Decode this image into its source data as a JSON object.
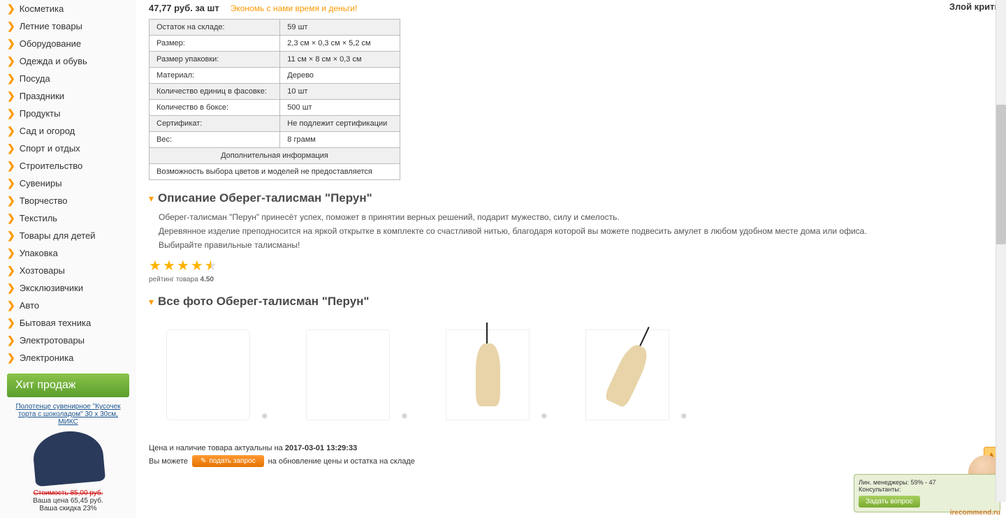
{
  "top_right": "Злой критик",
  "sidebar": {
    "items": [
      {
        "label": "Косметика"
      },
      {
        "label": "Летние товары"
      },
      {
        "label": "Оборудование"
      },
      {
        "label": "Одежда и обувь"
      },
      {
        "label": "Посуда"
      },
      {
        "label": "Праздники"
      },
      {
        "label": "Продукты"
      },
      {
        "label": "Сад и огород"
      },
      {
        "label": "Спорт и отдых"
      },
      {
        "label": "Строительство"
      },
      {
        "label": "Сувениры"
      },
      {
        "label": "Творчество"
      },
      {
        "label": "Текстиль"
      },
      {
        "label": "Товары для детей"
      },
      {
        "label": "Упаковка"
      },
      {
        "label": "Хозтовары"
      },
      {
        "label": "Эксклюзивчики"
      },
      {
        "label": "Авто"
      },
      {
        "label": "Бытовая техника"
      },
      {
        "label": "Электротовары"
      },
      {
        "label": "Электроника"
      }
    ],
    "hit": {
      "header": "Хит продаж",
      "link": "Полотенце сувенирное \"Кусочек торта с шоколадом\" 30 х 30см, МИКС",
      "old_price": "Стоимость 85,00 руб.",
      "new_price": "Ваша цена 65,45 руб.",
      "discount": "Ваша скидка 23%"
    }
  },
  "main": {
    "price": "47,77 руб. за шт",
    "slogan": "Экономь с нами время и деньги!",
    "specs": [
      {
        "k": "Остаток на складе:",
        "v": "59 шт"
      },
      {
        "k": "Размер:",
        "v": "2,3 см × 0,3 см × 5,2 см"
      },
      {
        "k": "Размер упаковки:",
        "v": "11 см × 8 см × 0,3 см"
      },
      {
        "k": "Материал:",
        "v": "Дерево"
      },
      {
        "k": "Количество единиц в фасовке:",
        "v": "10 шт"
      },
      {
        "k": "Количество в боксе:",
        "v": "500 шт"
      },
      {
        "k": "Сертификат:",
        "v": "Не подлежит сертификации"
      },
      {
        "k": "Вес:",
        "v": "8 грамм"
      }
    ],
    "spec_extra_header": "Дополнительная информация",
    "spec_extra_row": "Возможность выбора цветов и моделей не предоставляется",
    "desc_header": "Описание Оберег-талисман \"Перун\"",
    "desc_p1": "Оберег-талисман \"Перун\" принесёт успех, поможет в принятии верных решений, подарит мужество, силу и смелость.",
    "desc_p2": "Деревянное изделие преподносится на яркой открытке в комплекте со счастливой нитью, благодаря которой вы можете подвесить амулет в любом удобном месте дома или офиса.",
    "desc_p3": "Выбирайте правильные талисманы!",
    "rating_label": "рейтинг товара ",
    "rating_value": "4.50",
    "photos_header": "Все фото Оберег-талисман \"Перун\"",
    "update_prefix": "Цена и наличие товара актуальны на ",
    "update_date": "2017-03-01 13:29:33",
    "request_prefix": "Вы можете ",
    "request_btn": "подать запрос",
    "request_suffix": " на обновление цены и остатка на складе"
  },
  "chat": {
    "line1": "Лин. менеджеры: 59% - 47",
    "line2": "Консультанты:",
    "ask": "Задать вопрос"
  },
  "watermark": "irecommend.ru"
}
